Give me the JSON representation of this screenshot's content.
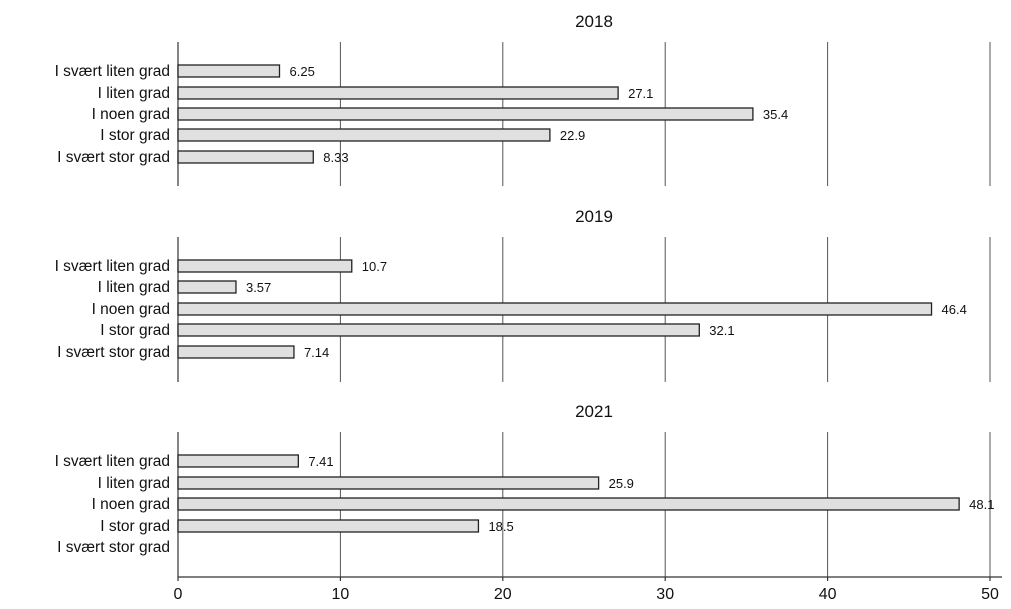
{
  "chart_data": {
    "type": "bar",
    "orientation": "horizontal",
    "xlim": [
      0,
      50
    ],
    "xticks": [
      0,
      10,
      20,
      30,
      40,
      50
    ],
    "grid": true,
    "bar_color": "#e0e0e0",
    "panels": [
      {
        "title": "2018",
        "categories": [
          "I svært liten grad",
          "I liten grad",
          "I noen grad",
          "I stor grad",
          "I svært stor grad"
        ],
        "values": [
          6.25,
          27.1,
          35.4,
          22.9,
          8.33
        ],
        "value_labels": [
          "6.25",
          "27.1",
          "35.4",
          "22.9",
          "8.33"
        ]
      },
      {
        "title": "2019",
        "categories": [
          "I svært liten grad",
          "I liten grad",
          "I noen grad",
          "I stor grad",
          "I svært stor grad"
        ],
        "values": [
          10.7,
          3.57,
          46.4,
          32.1,
          7.14
        ],
        "value_labels": [
          "10.7",
          "3.57",
          "46.4",
          "32.1",
          "7.14"
        ]
      },
      {
        "title": "2021",
        "categories": [
          "I svært liten grad",
          "I liten grad",
          "I noen grad",
          "I stor grad",
          "I svært stor grad"
        ],
        "values": [
          7.41,
          25.9,
          48.1,
          18.5,
          null
        ],
        "value_labels": [
          "7.41",
          "25.9",
          "48.1",
          "18.5",
          ""
        ]
      }
    ]
  }
}
